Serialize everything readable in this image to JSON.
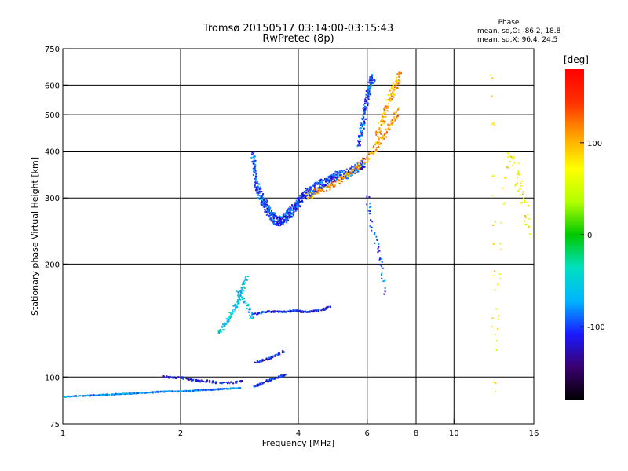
{
  "chart_data": {
    "type": "scatter",
    "title": "Tromsø 20150517 03:14:00-03:15:43",
    "subtitle": "RwPretec (8p)",
    "xlabel": "Frequency [MHz]",
    "ylabel": "Stationary phase Virtual Height [km]",
    "x_scale": "log",
    "y_scale": "log",
    "xlim": [
      1,
      16
    ],
    "ylim": [
      75,
      750
    ],
    "x_ticks": [
      1,
      2,
      4,
      6,
      8,
      10,
      16
    ],
    "y_ticks": [
      75,
      100,
      200,
      300,
      400,
      500,
      600,
      750
    ],
    "grid": true,
    "phase_info": {
      "header": "Phase",
      "line_o": "mean, sd,O: -86.2, 18.8",
      "line_x": "mean, sd,X:  96.4, 24.5"
    },
    "colorbar": {
      "label": "[deg]",
      "range": [
        -180,
        180
      ],
      "ticks": [
        100,
        0,
        -100
      ],
      "colors": [
        "#000000",
        "#3a006e",
        "#1a1aff",
        "#00b4ff",
        "#00e0c0",
        "#00c800",
        "#b4ff00",
        "#ffff00",
        "#ffa000",
        "#ff3000",
        "#ff0000"
      ]
    },
    "traces": [
      {
        "x": [
          1.0,
          1.12,
          1.25,
          1.4,
          1.55,
          1.7,
          1.85,
          2.0,
          2.2,
          2.4,
          2.6,
          2.85
        ],
        "y": [
          89,
          89.5,
          90,
          90.5,
          91,
          91.5,
          92,
          92,
          92.5,
          93,
          93.5,
          94
        ],
        "phase": -80,
        "spread": 1.2,
        "n": 5
      },
      {
        "x": [
          1.8,
          1.9,
          2.0,
          2.1,
          2.2,
          2.35,
          2.5,
          2.7,
          2.9
        ],
        "y": [
          101,
          100,
          100,
          99,
          98,
          98,
          97,
          97,
          98
        ],
        "phase": -115,
        "spread": 2.5,
        "n": 2
      },
      {
        "x": [
          2.5,
          2.62,
          2.75,
          2.86,
          2.95
        ],
        "y": [
          132,
          142,
          155,
          170,
          188
        ],
        "phase": -55,
        "spread": 4,
        "n": 4
      },
      {
        "x": [
          2.8,
          2.9,
          3.0,
          3.05
        ],
        "y": [
          170,
          160,
          150,
          142
        ],
        "phase": -60,
        "spread": 3,
        "n": 2
      },
      {
        "x": [
          3.1,
          3.3,
          3.5,
          3.7,
          3.9,
          4.1,
          4.3,
          4.6,
          4.8
        ],
        "y": [
          148,
          150,
          150,
          150,
          151,
          150,
          150,
          152,
          155
        ],
        "phase": -110,
        "spread": 2,
        "n": 3
      },
      {
        "x": [
          3.1,
          3.3,
          3.5,
          3.7
        ],
        "y": [
          110,
          112,
          115,
          118
        ],
        "phase": -110,
        "spread": 1.5,
        "n": 3
      },
      {
        "x": [
          3.1,
          3.3,
          3.5,
          3.7
        ],
        "y": [
          95,
          98,
          100,
          102
        ],
        "phase": -110,
        "spread": 2,
        "n": 4
      },
      {
        "x": [
          3.05,
          3.1,
          3.2,
          3.3,
          3.4,
          3.5,
          3.6,
          3.7,
          3.8,
          3.9,
          4.0,
          4.2,
          4.4,
          4.6,
          4.8,
          5.0,
          5.3,
          5.6,
          5.9
        ],
        "y": [
          390,
          330,
          300,
          285,
          270,
          262,
          262,
          268,
          275,
          285,
          295,
          310,
          320,
          330,
          335,
          345,
          350,
          360,
          375
        ],
        "phase": -100,
        "spread": 14,
        "n": 7
      },
      {
        "x": [
          4.2,
          4.5,
          4.8,
          5.1,
          5.4,
          5.7,
          6.0,
          6.3,
          6.6,
          6.9,
          7.2
        ],
        "y": [
          305,
          315,
          325,
          338,
          352,
          368,
          385,
          410,
          440,
          480,
          520
        ],
        "phase": 110,
        "spread": 10,
        "n": 3
      },
      {
        "x": [
          5.7,
          5.8,
          5.9,
          6.0,
          6.1,
          6.2
        ],
        "y": [
          420,
          470,
          520,
          570,
          610,
          640
        ],
        "phase": -95,
        "spread": 14,
        "n": 5
      },
      {
        "x": [
          6.3,
          6.5,
          6.7,
          6.9,
          7.1,
          7.3
        ],
        "y": [
          430,
          480,
          530,
          570,
          610,
          640
        ],
        "phase": 105,
        "spread": 15,
        "n": 4
      },
      {
        "x": [
          12.5,
          12.6,
          13.5,
          14.5,
          15.0,
          15.5
        ],
        "y": [
          600,
          100,
          370,
          350,
          300,
          250
        ],
        "phase": 70,
        "spread": 40,
        "n": 3
      },
      {
        "x": [
          6.0,
          6.1,
          6.3,
          6.5,
          6.7
        ],
        "y": [
          300,
          260,
          230,
          200,
          160
        ],
        "phase": -100,
        "spread": 8,
        "n": 2
      }
    ]
  }
}
